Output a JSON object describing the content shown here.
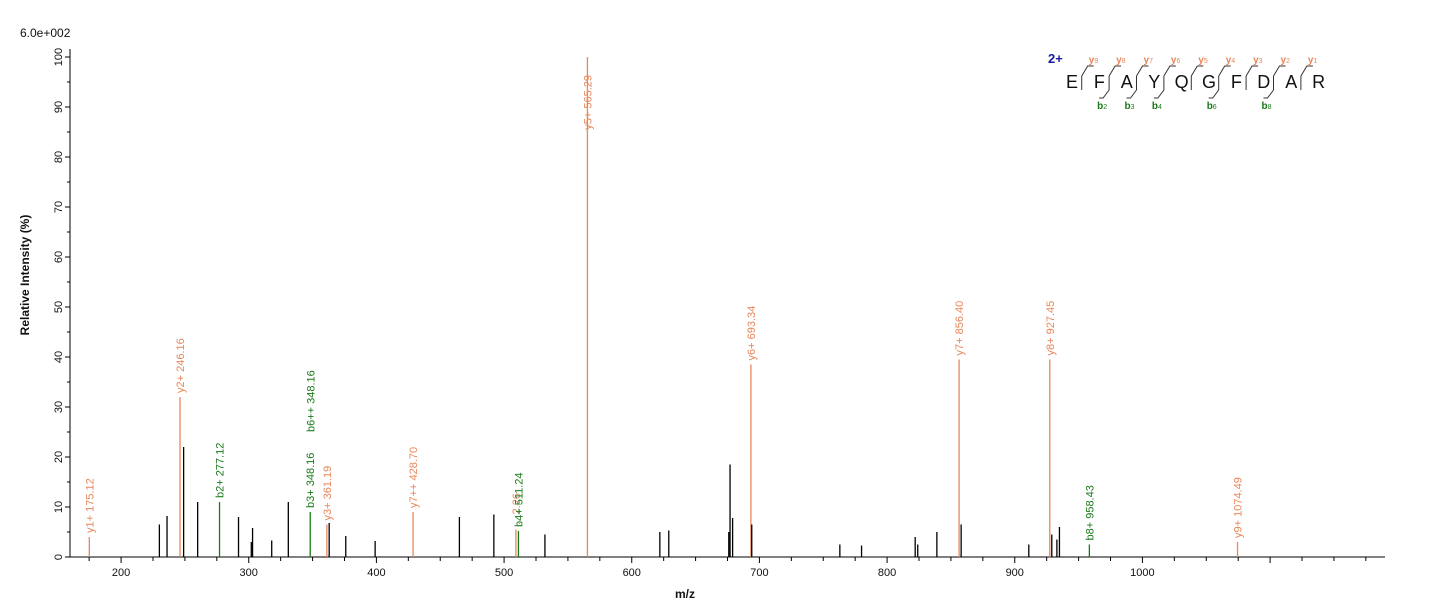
{
  "chart_data": {
    "type": "bar",
    "scale_label": "6.0e+002",
    "xlabel": "m/z",
    "ylabel": "Relative   Intensity (%)",
    "xlim": [
      160,
      1190
    ],
    "ylim": [
      0,
      100
    ],
    "x_ticks": [
      200,
      300,
      400,
      500,
      600,
      700,
      800,
      900,
      1000
    ],
    "y_ticks": [
      0,
      10,
      20,
      30,
      40,
      50,
      60,
      70,
      80,
      90,
      100
    ],
    "colors": {
      "y_ion": "#e8875a",
      "b_ion": "#1a7a1a",
      "unassigned": "#000000",
      "axis": "#000000"
    },
    "peaks": [
      {
        "mz": 175.12,
        "intensity": 4,
        "ion": "y",
        "label": "y1+ 175.12"
      },
      {
        "mz": 230,
        "intensity": 6.5,
        "ion": "none",
        "label": ""
      },
      {
        "mz": 236,
        "intensity": 8.2,
        "ion": "none",
        "label": ""
      },
      {
        "mz": 246.16,
        "intensity": 32,
        "ion": "y",
        "label": "y2+ 246.16"
      },
      {
        "mz": 249,
        "intensity": 22,
        "ion": "none",
        "label": ""
      },
      {
        "mz": 260,
        "intensity": 11,
        "ion": "none",
        "label": ""
      },
      {
        "mz": 277.12,
        "intensity": 11,
        "ion": "b",
        "label": "b2+ 277.12"
      },
      {
        "mz": 292,
        "intensity": 8,
        "ion": "none",
        "label": ""
      },
      {
        "mz": 302,
        "intensity": 3,
        "ion": "none",
        "label": ""
      },
      {
        "mz": 303,
        "intensity": 5.8,
        "ion": "none",
        "label": ""
      },
      {
        "mz": 318,
        "intensity": 3.3,
        "ion": "none",
        "label": ""
      },
      {
        "mz": 331,
        "intensity": 11,
        "ion": "none",
        "label": ""
      },
      {
        "mz": 348.16,
        "intensity": 9,
        "ion": "b",
        "label": "b3+ 348.16"
      },
      {
        "mz": 348.5,
        "intensity": 0,
        "ion": "b",
        "label": "b6++ 348.16",
        "label_only": true
      },
      {
        "mz": 361.19,
        "intensity": 6.5,
        "ion": "y",
        "label": "y3+ 361.19"
      },
      {
        "mz": 363,
        "intensity": 6.8,
        "ion": "none",
        "label": ""
      },
      {
        "mz": 376,
        "intensity": 4.2,
        "ion": "none",
        "label": ""
      },
      {
        "mz": 399,
        "intensity": 3.2,
        "ion": "none",
        "label": ""
      },
      {
        "mz": 428.7,
        "intensity": 9,
        "ion": "y",
        "label": "y7++ 428.70"
      },
      {
        "mz": 465,
        "intensity": 8,
        "ion": "none",
        "label": ""
      },
      {
        "mz": 492,
        "intensity": 8.5,
        "ion": "none",
        "label": ""
      },
      {
        "mz": 509.26,
        "intensity": 5.5,
        "ion": "y",
        "label": "…2.26"
      },
      {
        "mz": 511.24,
        "intensity": 5.2,
        "ion": "b",
        "label": "b4+ 511.24"
      },
      {
        "mz": 532,
        "intensity": 4.5,
        "ion": "none",
        "label": ""
      },
      {
        "mz": 565.29,
        "intensity": 100,
        "ion": "y",
        "label": "y5+ 565.29"
      },
      {
        "mz": 622,
        "intensity": 5,
        "ion": "none",
        "label": ""
      },
      {
        "mz": 629,
        "intensity": 5.3,
        "ion": "none",
        "label": ""
      },
      {
        "mz": 676,
        "intensity": 5,
        "ion": "none",
        "label": ""
      },
      {
        "mz": 677,
        "intensity": 18.5,
        "ion": "none",
        "label": ""
      },
      {
        "mz": 679,
        "intensity": 7.8,
        "ion": "none",
        "label": ""
      },
      {
        "mz": 693.34,
        "intensity": 38.5,
        "ion": "y",
        "label": "y6+ 693.34"
      },
      {
        "mz": 694,
        "intensity": 6.5,
        "ion": "none",
        "label": ""
      },
      {
        "mz": 763,
        "intensity": 2.5,
        "ion": "none",
        "label": ""
      },
      {
        "mz": 780,
        "intensity": 2.3,
        "ion": "none",
        "label": ""
      },
      {
        "mz": 822,
        "intensity": 4,
        "ion": "none",
        "label": ""
      },
      {
        "mz": 824,
        "intensity": 2.5,
        "ion": "none",
        "label": ""
      },
      {
        "mz": 839,
        "intensity": 5,
        "ion": "none",
        "label": ""
      },
      {
        "mz": 856.4,
        "intensity": 39.5,
        "ion": "y",
        "label": "y7+ 856.40"
      },
      {
        "mz": 858,
        "intensity": 6.5,
        "ion": "none",
        "label": ""
      },
      {
        "mz": 911,
        "intensity": 2.5,
        "ion": "none",
        "label": ""
      },
      {
        "mz": 927.45,
        "intensity": 39.5,
        "ion": "y",
        "label": "y8+ 927.45"
      },
      {
        "mz": 929,
        "intensity": 4.5,
        "ion": "none",
        "label": ""
      },
      {
        "mz": 933,
        "intensity": 3.5,
        "ion": "none",
        "label": ""
      },
      {
        "mz": 935,
        "intensity": 6,
        "ion": "none",
        "label": ""
      },
      {
        "mz": 958.43,
        "intensity": 2.5,
        "ion": "b",
        "label": "b8+ 958.43"
      },
      {
        "mz": 1074.49,
        "intensity": 3,
        "ion": "y",
        "label": "y9+ 1074.49"
      }
    ]
  },
  "sequence": {
    "charge": "2+",
    "residues": [
      "E",
      "F",
      "A",
      "Y",
      "Q",
      "G",
      "F",
      "D",
      "A",
      "R"
    ],
    "y_ions": [
      {
        "after": 0,
        "label": "y",
        "num": "9"
      },
      {
        "after": 1,
        "label": "y",
        "num": "8"
      },
      {
        "after": 2,
        "label": "y",
        "num": "7"
      },
      {
        "after": 3,
        "label": "y",
        "num": "6"
      },
      {
        "after": 4,
        "label": "y",
        "num": "5"
      },
      {
        "after": 5,
        "label": "y",
        "num": "4"
      },
      {
        "after": 6,
        "label": "y",
        "num": "3"
      },
      {
        "after": 7,
        "label": "y",
        "num": "2"
      },
      {
        "after": 8,
        "label": "y",
        "num": "1"
      }
    ],
    "b_ions": [
      {
        "after": 1,
        "label": "b",
        "num": "2"
      },
      {
        "after": 2,
        "label": "b",
        "num": "3"
      },
      {
        "after": 3,
        "label": "b",
        "num": "4"
      },
      {
        "after": 5,
        "label": "b",
        "num": "6"
      },
      {
        "after": 7,
        "label": "b",
        "num": "8"
      }
    ]
  }
}
